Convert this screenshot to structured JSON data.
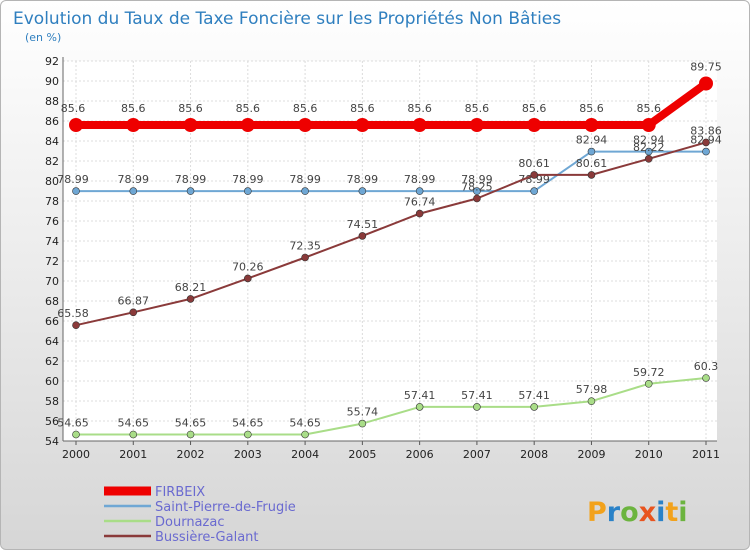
{
  "chart_data": {
    "type": "line",
    "title": "Evolution du Taux de Taxe Foncière sur les Propriétés Non Bâties",
    "subtitle": "(en %)",
    "xlabel": "",
    "ylabel": "",
    "categories": [
      "2000",
      "2001",
      "2002",
      "2003",
      "2004",
      "2005",
      "2006",
      "2007",
      "2008",
      "2009",
      "2010",
      "2011"
    ],
    "ylim": [
      54,
      92
    ],
    "yticks": [
      54,
      56,
      58,
      60,
      62,
      64,
      66,
      68,
      70,
      72,
      74,
      76,
      78,
      80,
      82,
      84,
      86,
      88,
      90,
      92
    ],
    "grid": true,
    "legend_position": "bottom-left",
    "series": [
      {
        "name": "FIRBEIX",
        "color": "#ee0000",
        "values": [
          85.6,
          85.6,
          85.6,
          85.6,
          85.6,
          85.6,
          85.6,
          85.6,
          85.6,
          85.6,
          85.6,
          89.75
        ],
        "labels": [
          "85.6",
          "85.6",
          "85.6",
          "85.6",
          "85.6",
          "85.6",
          "85.6",
          "85.6",
          "85.6",
          "85.6",
          "85.6",
          "89.75"
        ]
      },
      {
        "name": "Saint-Pierre-de-Frugie",
        "color": "#6fa7d4",
        "values": [
          78.99,
          78.99,
          78.99,
          78.99,
          78.99,
          78.99,
          78.99,
          78.99,
          78.99,
          82.94,
          82.94,
          82.94
        ],
        "labels": [
          "78.99",
          "78.99",
          "78.99",
          "78.99",
          "78.99",
          "78.99",
          "78.99",
          "78.99",
          "78.99",
          "82.94",
          "82.94",
          "82.94"
        ]
      },
      {
        "name": "Dournazac",
        "color": "#a9dd88",
        "values": [
          54.65,
          54.65,
          54.65,
          54.65,
          54.65,
          55.74,
          57.41,
          57.41,
          57.41,
          57.98,
          59.72,
          60.3
        ],
        "labels": [
          "54.65",
          "54.65",
          "54.65",
          "54.65",
          "54.65",
          "55.74",
          "57.41",
          "57.41",
          "57.41",
          "57.98",
          "59.72",
          "60.3"
        ]
      },
      {
        "name": "Bussière-Galant",
        "color": "#8a3a3a",
        "values": [
          65.58,
          66.87,
          68.21,
          70.26,
          72.35,
          74.51,
          76.74,
          78.25,
          80.61,
          80.61,
          82.22,
          83.86
        ],
        "labels": [
          "65.58",
          "66.87",
          "68.21",
          "70.26",
          "72.35",
          "74.51",
          "76.74",
          "78.25",
          "80.61",
          "80.61",
          "82.22",
          "83.86"
        ]
      }
    ]
  },
  "branding": {
    "letters": [
      "P",
      "r",
      "o",
      "x",
      "i",
      "t",
      "i"
    ],
    "colors": [
      "#f2a21c",
      "#2a82c8",
      "#6cb43f",
      "#e8541f",
      "#2a82c8",
      "#f2a21c",
      "#6cb43f"
    ]
  }
}
